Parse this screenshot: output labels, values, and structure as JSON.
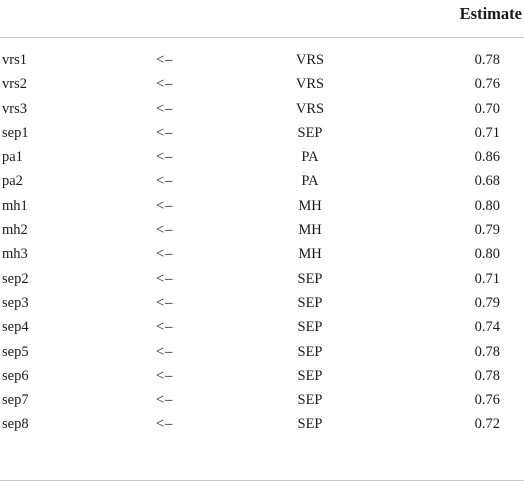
{
  "table": {
    "header": {
      "estimate": "Estimate"
    },
    "rows": [
      {
        "indicator": "vrs1",
        "op": "<–",
        "factor": "VRS",
        "estimate": "0.78"
      },
      {
        "indicator": "vrs2",
        "op": "<–",
        "factor": "VRS",
        "estimate": "0.76"
      },
      {
        "indicator": "vrs3",
        "op": "<–",
        "factor": "VRS",
        "estimate": "0.70"
      },
      {
        "indicator": "sep1",
        "op": "<–",
        "factor": "SEP",
        "estimate": "0.71"
      },
      {
        "indicator": "pa1",
        "op": "<–",
        "factor": "PA",
        "estimate": "0.86"
      },
      {
        "indicator": "pa2",
        "op": "<–",
        "factor": "PA",
        "estimate": "0.68"
      },
      {
        "indicator": "mh1",
        "op": "<–",
        "factor": "MH",
        "estimate": "0.80"
      },
      {
        "indicator": "mh2",
        "op": "<–",
        "factor": "MH",
        "estimate": "0.79"
      },
      {
        "indicator": "mh3",
        "op": "<–",
        "factor": "MH",
        "estimate": "0.80"
      },
      {
        "indicator": "sep2",
        "op": "<–",
        "factor": "SEP",
        "estimate": "0.71"
      },
      {
        "indicator": "sep3",
        "op": "<–",
        "factor": "SEP",
        "estimate": "0.79"
      },
      {
        "indicator": "sep4",
        "op": "<–",
        "factor": "SEP",
        "estimate": "0.74"
      },
      {
        "indicator": "sep5",
        "op": "<–",
        "factor": "SEP",
        "estimate": "0.78"
      },
      {
        "indicator": "sep6",
        "op": "<–",
        "factor": "SEP",
        "estimate": "0.78"
      },
      {
        "indicator": "sep7",
        "op": "<–",
        "factor": "SEP",
        "estimate": "0.76"
      },
      {
        "indicator": "sep8",
        "op": "<–",
        "factor": "SEP",
        "estimate": "0.72"
      }
    ]
  }
}
